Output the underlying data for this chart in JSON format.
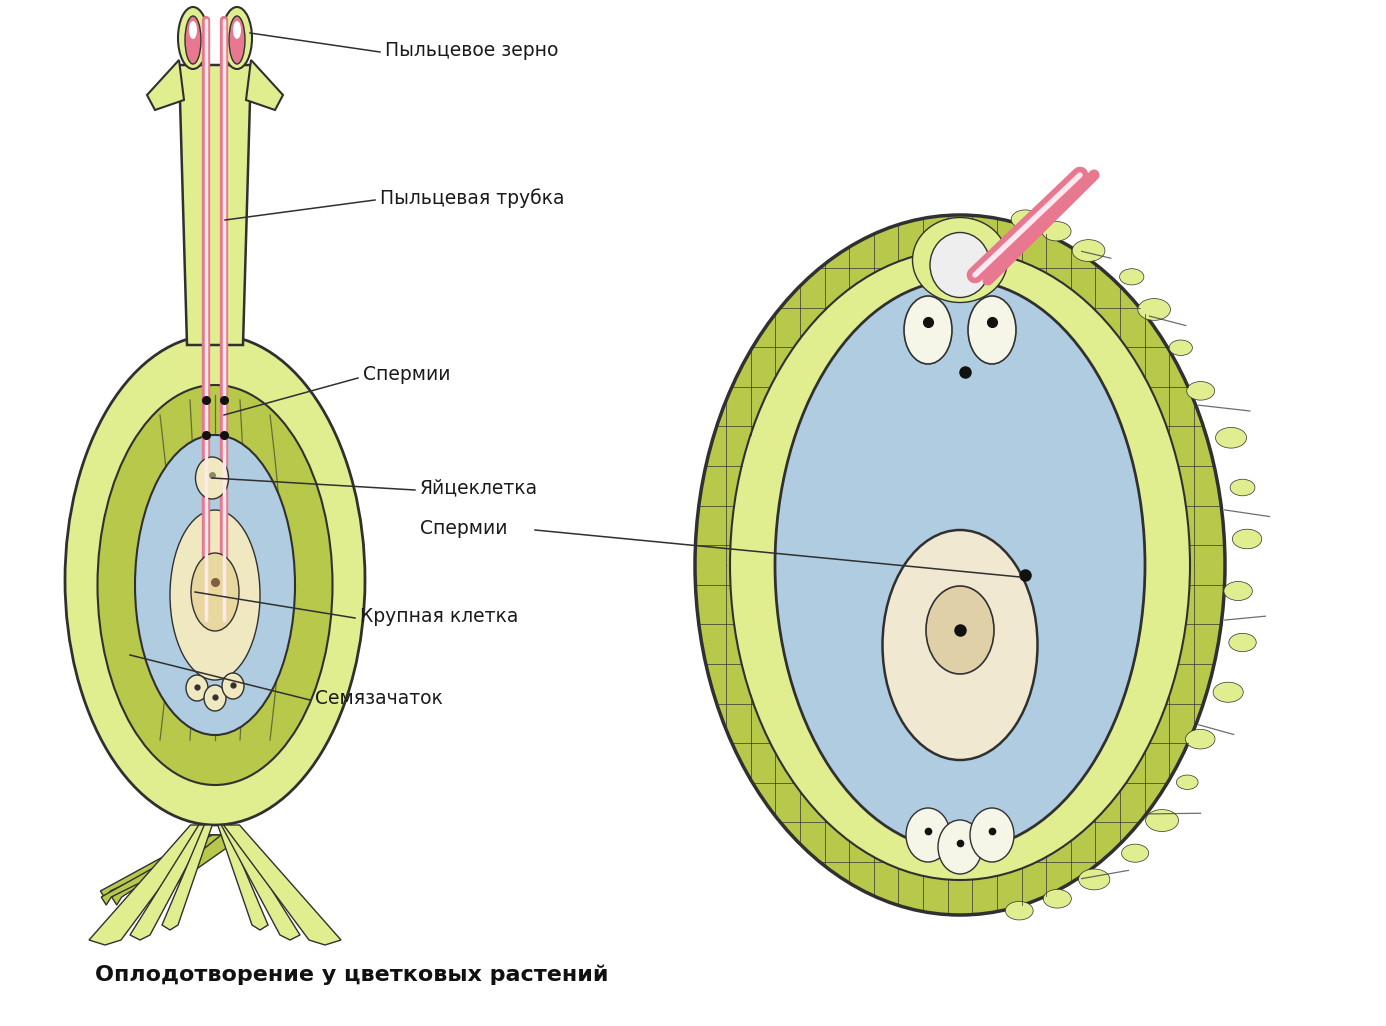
{
  "bg_color": "#ffffff",
  "title": "Оплодотворение у цветковых растений",
  "title_fontsize": 16,
  "title_bold": true,
  "labels": {
    "pollen_grain": "Пыльцевое зерно",
    "pollen_tube": "Пыльцевая трубка",
    "spermii_left": "Спермии",
    "egg_cell": "Яйцеклетка",
    "spermii_right": "Спермии",
    "large_cell": "Крупная клетка",
    "semyazachatok": "Семязачаток"
  },
  "colors": {
    "yellow_green": "#b8c84a",
    "yellow_green_dark": "#a0b030",
    "light_yellow": "#d8e870",
    "light_yellow2": "#e0ee90",
    "pink": "#e87890",
    "light_pink": "#f0b0b8",
    "white_pink": "#fff0f2",
    "light_blue": "#b0cce0",
    "blue_gray": "#90b8d0",
    "beige": "#e8d8a0",
    "light_beige": "#f0e8c0",
    "dark_line": "#303030",
    "black": "#000000",
    "brown_dark": "#604030",
    "outer_green": "#b0c040",
    "cell_wall": "#98a830",
    "synergid_white": "#f5f5e8",
    "egg_fill": "#f0e8d0",
    "nucleus_fill": "#e0d0a8"
  }
}
